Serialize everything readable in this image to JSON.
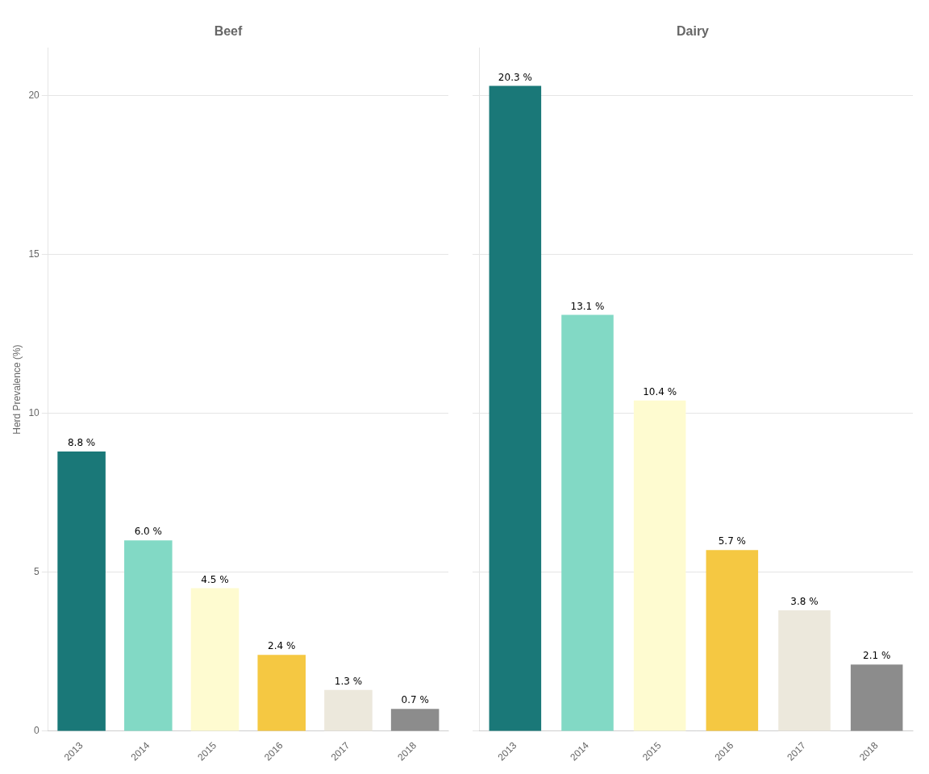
{
  "chart_data": [
    {
      "type": "bar",
      "title": "Beef",
      "categories": [
        "2013",
        "2014",
        "2015",
        "2016",
        "2017",
        "2018"
      ],
      "values": [
        8.8,
        6.0,
        4.5,
        2.4,
        1.3,
        0.7
      ],
      "value_labels": [
        "8.8 %",
        "6.0 %",
        "4.5 %",
        "2.4 %",
        "1.3 %",
        "0.7 %"
      ],
      "colors": [
        "#1a7878",
        "#82d9c5",
        "#fefbd0",
        "#f5c842",
        "#ece8dc",
        "#8c8c8c"
      ],
      "ylabel": "Herd Prevalence (%)",
      "ylim": [
        0,
        21.5
      ],
      "yticks": [
        0,
        5,
        10,
        15,
        20
      ],
      "grid": true,
      "data_labels": true
    },
    {
      "type": "bar",
      "title": "Dairy",
      "categories": [
        "2013",
        "2014",
        "2015",
        "2016",
        "2017",
        "2018"
      ],
      "values": [
        20.3,
        13.1,
        10.4,
        5.7,
        3.8,
        2.1
      ],
      "value_labels": [
        "20.3 %",
        "13.1 %",
        "10.4 %",
        "5.7 %",
        "3.8 %",
        "2.1 %"
      ],
      "colors": [
        "#1a7878",
        "#82d9c5",
        "#fefbd0",
        "#f5c842",
        "#ece8dc",
        "#8c8c8c"
      ],
      "ylim": [
        0,
        21.5
      ],
      "yticks": [
        0,
        5,
        10,
        15,
        20
      ],
      "grid": true,
      "data_labels": true,
      "tick_labels": "x"
    }
  ]
}
